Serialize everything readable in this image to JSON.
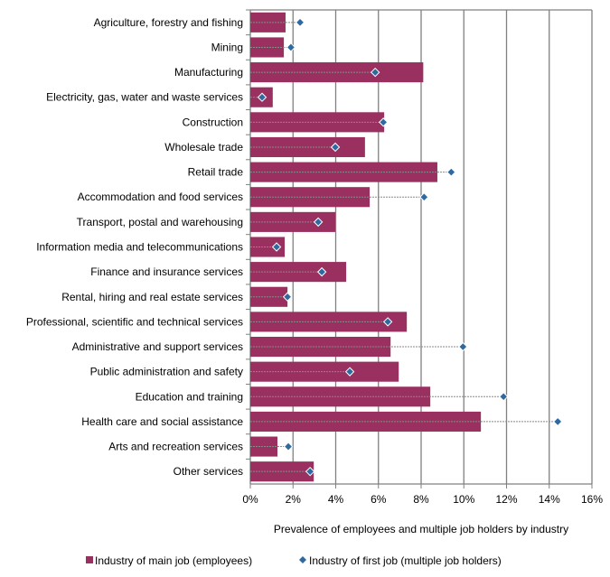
{
  "chart_data": {
    "type": "bar",
    "orientation": "horizontal",
    "xlabel": "Prevalence  of employees and multiple job holders by industry",
    "xlim": [
      0,
      16
    ],
    "xticks": [
      "0%",
      "2%",
      "4%",
      "6%",
      "8%",
      "10%",
      "12%",
      "14%",
      "16%"
    ],
    "grid": true,
    "legend_position": "bottom",
    "colors": {
      "bar": "#993060",
      "marker": "#2e6aa0"
    },
    "categories": [
      "Agriculture, forestry and fishing",
      "Mining",
      "Manufacturing",
      "Electricity, gas, water and waste services",
      "Construction",
      "Wholesale trade",
      "Retail trade",
      "Accommodation and food services",
      "Transport, postal and warehousing",
      "Information media and telecommunications",
      "Finance and insurance services",
      "Rental, hiring and real estate services",
      "Professional, scientific and technical services",
      "Administrative and support services",
      "Public administration and safety",
      "Education and training",
      "Health care and social assistance",
      "Arts and recreation services",
      "Other services"
    ],
    "series": [
      {
        "name": "Industry of main job (employees)",
        "kind": "bar",
        "values": [
          1.65,
          1.57,
          8.1,
          1.05,
          6.27,
          5.37,
          8.76,
          5.59,
          3.98,
          1.61,
          4.49,
          1.74,
          7.33,
          6.57,
          6.95,
          8.43,
          10.8,
          1.27,
          2.97
        ]
      },
      {
        "name": "Industry of first job (multiple job holders)",
        "kind": "diamond",
        "values": [
          2.33,
          1.9,
          5.85,
          0.55,
          6.23,
          3.98,
          9.41,
          8.14,
          3.18,
          1.23,
          3.35,
          1.74,
          6.44,
          9.96,
          4.66,
          11.86,
          14.4,
          1.78,
          2.8
        ]
      }
    ]
  }
}
